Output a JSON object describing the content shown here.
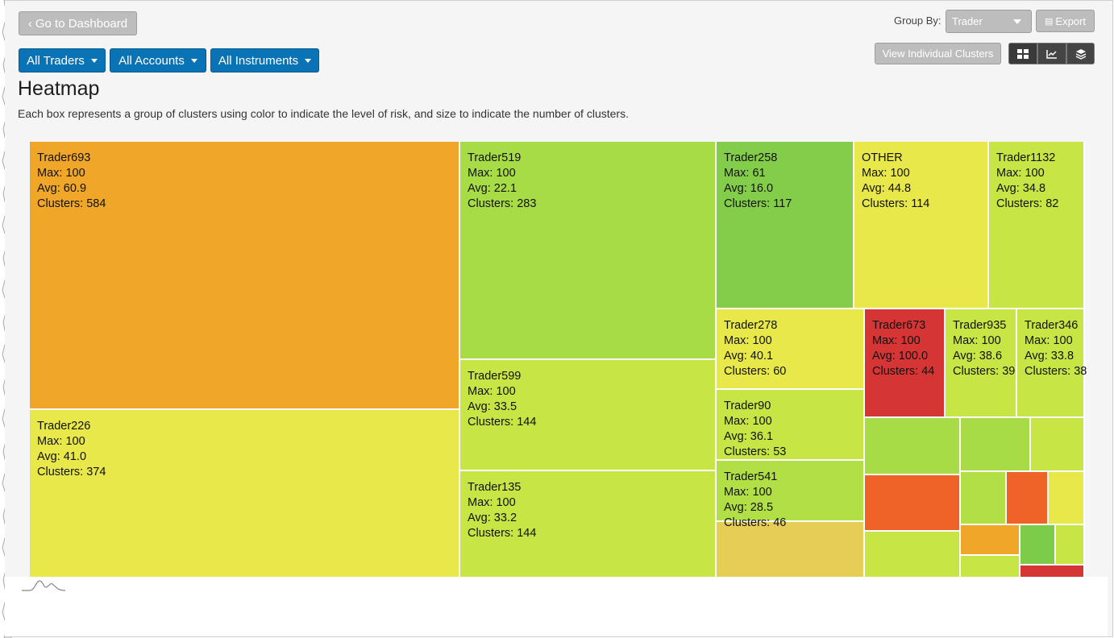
{
  "header": {
    "back_button": "Go to Dashboard",
    "group_by_label": "Group By:",
    "group_by_value": "Trader",
    "export_label": "Export",
    "view_clusters_label": "View Individual Clusters"
  },
  "filters": {
    "traders": "All Traders",
    "accounts": "All Accounts",
    "instruments": "All Instruments"
  },
  "main": {
    "title": "Heatmap",
    "description": "Each box represents a group of clusters using color to indicate the level of risk, and size to indicate the number of clusters."
  },
  "view_icons": [
    "grid-icon",
    "line-chart-icon",
    "layers-icon"
  ],
  "treemap": {
    "cells": [
      {
        "name": "Trader693",
        "max": "Max: 100",
        "avg": "Avg: 60.9",
        "clusters": "Clusters: 584",
        "color": "#f0a628"
      },
      {
        "name": "Trader226",
        "max": "Max: 100",
        "avg": "Avg: 41.0",
        "clusters": "Clusters: 374",
        "color": "#e8e84a"
      },
      {
        "name": "Trader519",
        "max": "Max: 100",
        "avg": "Avg: 22.1",
        "clusters": "Clusters: 283",
        "color": "#a8dc46"
      },
      {
        "name": "Trader599",
        "max": "Max: 100",
        "avg": "Avg: 33.5",
        "clusters": "Clusters: 144",
        "color": "#c7e544"
      },
      {
        "name": "Trader135",
        "max": "Max: 100",
        "avg": "Avg: 33.2",
        "clusters": "Clusters: 144",
        "color": "#c7e544"
      },
      {
        "name": "Trader258",
        "max": "Max: 61",
        "avg": "Avg: 16.0",
        "clusters": "Clusters: 117",
        "color": "#84cd4a"
      },
      {
        "name": "OTHER",
        "max": "Max: 100",
        "avg": "Avg: 44.8",
        "clusters": "Clusters: 114",
        "color": "#e8e84a"
      },
      {
        "name": "Trader1132",
        "max": "Max: 100",
        "avg": "Avg: 34.8",
        "clusters": "Clusters: 82",
        "color": "#c7e544"
      },
      {
        "name": "Trader278",
        "max": "Max: 100",
        "avg": "Avg: 40.1",
        "clusters": "Clusters: 60",
        "color": "#e8e84a"
      },
      {
        "name": "Trader673",
        "max": "Max: 100",
        "avg": "Avg: 100.0",
        "clusters": "Clusters: 44",
        "color": "#d63535"
      },
      {
        "name": "Trader935",
        "max": "Max: 100",
        "avg": "Avg: 38.6",
        "clusters": "Clusters: 39",
        "color": "#c7e544"
      },
      {
        "name": "Trader346",
        "max": "Max: 100",
        "avg": "Avg: 33.8",
        "clusters": "Clusters: 38",
        "color": "#c7e544"
      },
      {
        "name": "Trader90",
        "max": "Max: 100",
        "avg": "Avg: 36.1",
        "clusters": "Clusters: 53",
        "color": "#c7e544"
      },
      {
        "name": "Trader541",
        "max": "Max: 100",
        "avg": "Avg: 28.5",
        "clusters": "Clusters: 46",
        "color": "#b1df45"
      }
    ],
    "small_cells": [
      {
        "color": "#e6ce56"
      },
      {
        "color": "#a8dc46"
      },
      {
        "color": "#a8dc46"
      },
      {
        "color": "#c7e544"
      },
      {
        "color": "#ef6328"
      },
      {
        "color": "#b1df45"
      },
      {
        "color": "#ef6328"
      },
      {
        "color": "#e8e84a"
      },
      {
        "color": "#c7e544"
      },
      {
        "color": "#f0a628"
      },
      {
        "color": "#7ccc4a"
      },
      {
        "color": "#c7e544"
      },
      {
        "color": "#c7e544"
      },
      {
        "color": "#d63535"
      }
    ]
  }
}
